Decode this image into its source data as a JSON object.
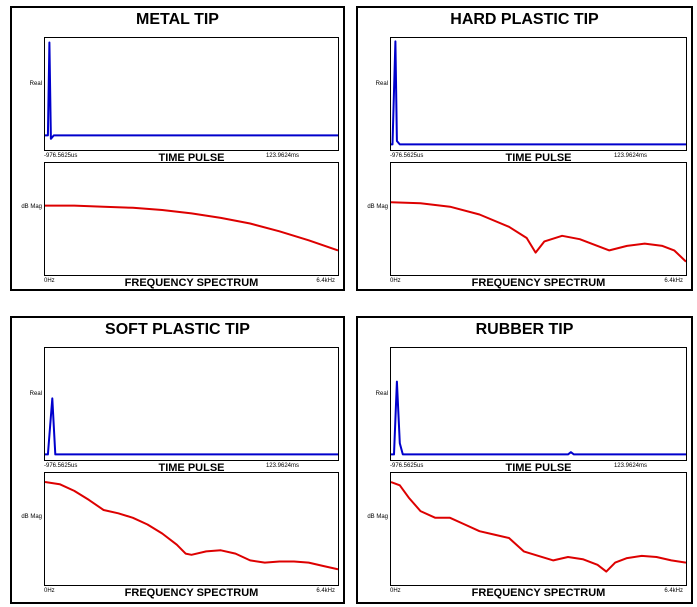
{
  "chart_data": [
    {
      "type": "line",
      "title": "METAL TIP",
      "subplots": [
        {
          "title": "TIME PULSE",
          "ylabel": "Real",
          "x_start": "-976.5625us",
          "x_end": "123.9624ms",
          "series": [
            {
              "color": "#0000cc",
              "points": [
                [
                  0,
                  0.13
                ],
                [
                  0.01,
                  0.13
                ],
                [
                  0.015,
                  0.96
                ],
                [
                  0.02,
                  0.1
                ],
                [
                  0.03,
                  0.13
                ],
                [
                  1,
                  0.13
                ]
              ]
            }
          ]
        },
        {
          "title": "FREQUENCY SPECTRUM",
          "ylabel": "dB Mag",
          "x_start": "0Hz",
          "x_end": "6.4kHz",
          "series": [
            {
              "color": "#dd0000",
              "points": [
                [
                  0,
                  0.62
                ],
                [
                  0.1,
                  0.62
                ],
                [
                  0.2,
                  0.61
                ],
                [
                  0.3,
                  0.6
                ],
                [
                  0.4,
                  0.58
                ],
                [
                  0.5,
                  0.55
                ],
                [
                  0.6,
                  0.51
                ],
                [
                  0.7,
                  0.46
                ],
                [
                  0.8,
                  0.39
                ],
                [
                  0.9,
                  0.31
                ],
                [
                  1,
                  0.22
                ]
              ]
            }
          ]
        }
      ]
    },
    {
      "type": "line",
      "title": "HARD PLASTIC TIP",
      "subplots": [
        {
          "title": "TIME PULSE",
          "ylabel": "Real",
          "x_start": "-976.5625us",
          "x_end": "123.9624ms",
          "series": [
            {
              "color": "#0000cc",
              "points": [
                [
                  0,
                  0.05
                ],
                [
                  0.005,
                  0.05
                ],
                [
                  0.015,
                  0.97
                ],
                [
                  0.02,
                  0.08
                ],
                [
                  0.03,
                  0.05
                ],
                [
                  1,
                  0.05
                ]
              ]
            }
          ]
        },
        {
          "title": "FREQUENCY SPECTRUM",
          "ylabel": "dB Mag",
          "x_start": "0Hz",
          "x_end": "6.4kHz",
          "series": [
            {
              "color": "#dd0000",
              "points": [
                [
                  0,
                  0.65
                ],
                [
                  0.1,
                  0.64
                ],
                [
                  0.2,
                  0.61
                ],
                [
                  0.3,
                  0.54
                ],
                [
                  0.4,
                  0.43
                ],
                [
                  0.46,
                  0.33
                ],
                [
                  0.49,
                  0.2
                ],
                [
                  0.52,
                  0.3
                ],
                [
                  0.58,
                  0.35
                ],
                [
                  0.64,
                  0.32
                ],
                [
                  0.7,
                  0.26
                ],
                [
                  0.74,
                  0.22
                ],
                [
                  0.8,
                  0.26
                ],
                [
                  0.86,
                  0.28
                ],
                [
                  0.92,
                  0.26
                ],
                [
                  0.96,
                  0.22
                ],
                [
                  1,
                  0.12
                ]
              ]
            }
          ]
        }
      ]
    },
    {
      "type": "line",
      "title": "SOFT PLASTIC TIP",
      "subplots": [
        {
          "title": "TIME PULSE",
          "ylabel": "Real",
          "x_start": "-976.5625us",
          "x_end": "123.9624ms",
          "series": [
            {
              "color": "#0000cc",
              "points": [
                [
                  0,
                  0.05
                ],
                [
                  0.01,
                  0.05
                ],
                [
                  0.025,
                  0.55
                ],
                [
                  0.035,
                  0.05
                ],
                [
                  0.05,
                  0.05
                ],
                [
                  1,
                  0.05
                ]
              ]
            }
          ]
        },
        {
          "title": "FREQUENCY SPECTRUM",
          "ylabel": "dB Mag",
          "x_start": "0Hz",
          "x_end": "6.4kHz",
          "series": [
            {
              "color": "#dd0000",
              "points": [
                [
                  0,
                  0.92
                ],
                [
                  0.05,
                  0.9
                ],
                [
                  0.1,
                  0.84
                ],
                [
                  0.15,
                  0.76
                ],
                [
                  0.2,
                  0.67
                ],
                [
                  0.25,
                  0.64
                ],
                [
                  0.3,
                  0.6
                ],
                [
                  0.35,
                  0.54
                ],
                [
                  0.4,
                  0.46
                ],
                [
                  0.45,
                  0.36
                ],
                [
                  0.48,
                  0.28
                ],
                [
                  0.5,
                  0.27
                ],
                [
                  0.55,
                  0.3
                ],
                [
                  0.6,
                  0.31
                ],
                [
                  0.65,
                  0.28
                ],
                [
                  0.7,
                  0.22
                ],
                [
                  0.75,
                  0.2
                ],
                [
                  0.8,
                  0.21
                ],
                [
                  0.85,
                  0.21
                ],
                [
                  0.9,
                  0.2
                ],
                [
                  0.95,
                  0.17
                ],
                [
                  1,
                  0.14
                ]
              ]
            }
          ]
        }
      ]
    },
    {
      "type": "line",
      "title": "RUBBER TIP",
      "subplots": [
        {
          "title": "TIME PULSE",
          "ylabel": "Real",
          "x_start": "-976.5625us",
          "x_end": "123.9624ms",
          "series": [
            {
              "color": "#0000cc",
              "points": [
                [
                  0,
                  0.05
                ],
                [
                  0.01,
                  0.05
                ],
                [
                  0.02,
                  0.7
                ],
                [
                  0.03,
                  0.15
                ],
                [
                  0.04,
                  0.05
                ],
                [
                  0.05,
                  0.05
                ],
                [
                  0.6,
                  0.05
                ],
                [
                  0.61,
                  0.07
                ],
                [
                  0.62,
                  0.05
                ],
                [
                  1,
                  0.05
                ]
              ]
            }
          ]
        },
        {
          "title": "FREQUENCY SPECTRUM",
          "ylabel": "dB Mag",
          "x_start": "0Hz",
          "x_end": "6.4kHz",
          "series": [
            {
              "color": "#dd0000",
              "points": [
                [
                  0,
                  0.92
                ],
                [
                  0.03,
                  0.89
                ],
                [
                  0.06,
                  0.78
                ],
                [
                  0.1,
                  0.66
                ],
                [
                  0.15,
                  0.6
                ],
                [
                  0.2,
                  0.6
                ],
                [
                  0.25,
                  0.54
                ],
                [
                  0.3,
                  0.48
                ],
                [
                  0.35,
                  0.45
                ],
                [
                  0.4,
                  0.42
                ],
                [
                  0.45,
                  0.3
                ],
                [
                  0.5,
                  0.26
                ],
                [
                  0.55,
                  0.22
                ],
                [
                  0.6,
                  0.25
                ],
                [
                  0.65,
                  0.23
                ],
                [
                  0.7,
                  0.18
                ],
                [
                  0.73,
                  0.12
                ],
                [
                  0.76,
                  0.2
                ],
                [
                  0.8,
                  0.24
                ],
                [
                  0.85,
                  0.26
                ],
                [
                  0.9,
                  0.25
                ],
                [
                  0.95,
                  0.22
                ],
                [
                  1,
                  0.2
                ]
              ]
            }
          ]
        }
      ]
    }
  ]
}
